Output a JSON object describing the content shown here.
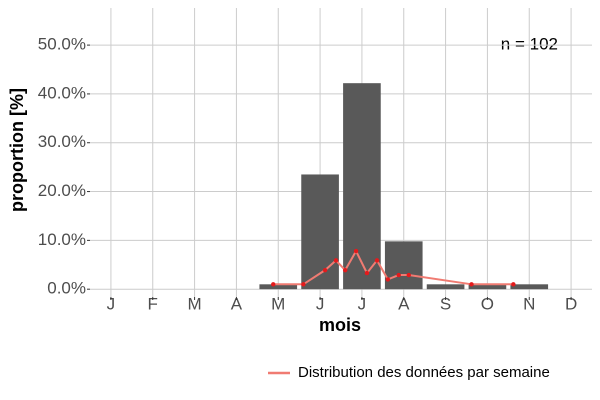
{
  "chart_data": {
    "type": "bar",
    "x_label": "mois",
    "y_label": "proportion [%]",
    "annotation": "n = 102",
    "categories": [
      "J",
      "F",
      "M",
      "A",
      "M",
      "J",
      "J",
      "A",
      "S",
      "O",
      "N",
      "D"
    ],
    "values": [
      0,
      0,
      0,
      0,
      1.0,
      23.5,
      42.2,
      9.8,
      1.0,
      1.0,
      1.0,
      0
    ],
    "color": "#595959",
    "xlim": [
      0.5,
      12.5
    ],
    "ylim": [
      -1.6,
      57.6
    ],
    "yticks": [
      {
        "value": 0,
        "label": "0.0%"
      },
      {
        "value": 10,
        "label": "10.0%"
      },
      {
        "value": 20,
        "label": "20.0%"
      },
      {
        "value": 30,
        "label": "30.0%"
      },
      {
        "value": 40,
        "label": "40.0%"
      },
      {
        "value": 50,
        "label": "50.0%"
      }
    ],
    "grid": true,
    "overlay": {
      "type": "line",
      "name": "Distribution des données par semaine",
      "color": "#f07b72",
      "point_color": "#e41a1c",
      "x": [
        4.88,
        5.6,
        6.12,
        6.38,
        6.6,
        6.86,
        7.12,
        7.36,
        7.62,
        7.88,
        8.12,
        9.62,
        10.62
      ],
      "values": [
        1.0,
        1.0,
        3.9,
        5.9,
        3.9,
        7.8,
        3.3,
        5.9,
        2.0,
        2.9,
        2.9,
        1.0,
        1.0
      ]
    }
  }
}
